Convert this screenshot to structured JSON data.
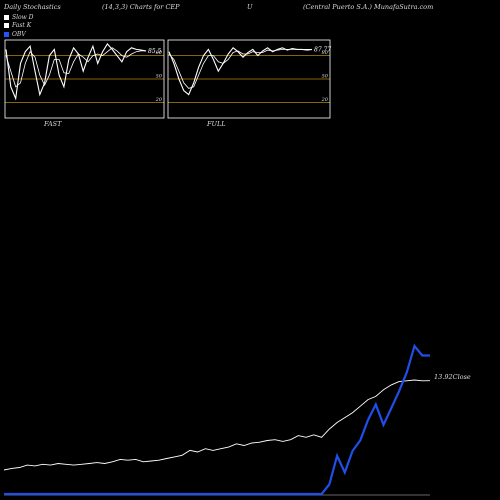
{
  "header": {
    "left": "Daily Stochastics",
    "params": "(14,3,3) Charts for CEP",
    "middle": "U",
    "right": "(Central Puerto  S.A.) MunafaSutra.com"
  },
  "legend": [
    {
      "label": "Slow  D",
      "color": "#ffffff"
    },
    {
      "label": "Fast K",
      "color": "#ffffff"
    },
    {
      "label": "OBV",
      "color": "#2255ff"
    }
  ],
  "colors": {
    "background": "#000000",
    "panel_border": "#ffffff",
    "level_line": "#b8860b",
    "stoch_line": "#ffffff",
    "obv": "#1f4fe8",
    "close": "#ffffff"
  },
  "chart_data": [
    {
      "type": "line",
      "panel": "FAST",
      "title": "FAST",
      "ylim": [
        0,
        100
      ],
      "levels": [
        20,
        50,
        80
      ],
      "last_value_label": "85.5",
      "series": [
        {
          "name": "Fast K",
          "values": [
            88,
            40,
            25,
            70,
            85,
            92,
            60,
            30,
            45,
            80,
            88,
            55,
            40,
            75,
            90,
            82,
            60,
            78,
            92,
            70,
            85,
            95,
            88,
            80,
            72,
            85,
            90,
            88,
            87,
            86
          ]
        },
        {
          "name": "Slow  D",
          "values": [
            80,
            60,
            40,
            45,
            70,
            85,
            78,
            55,
            42,
            55,
            75,
            75,
            58,
            57,
            72,
            82,
            78,
            72,
            80,
            82,
            80,
            85,
            90,
            86,
            80,
            78,
            82,
            85,
            86,
            86
          ]
        }
      ]
    },
    {
      "type": "line",
      "panel": "FULL",
      "title": "FULL",
      "ylim": [
        0,
        100
      ],
      "levels": [
        20,
        50,
        80
      ],
      "last_value_label": "87.77",
      "series": [
        {
          "name": "Fast K",
          "values": [
            85,
            70,
            50,
            35,
            30,
            45,
            65,
            80,
            88,
            75,
            60,
            70,
            82,
            90,
            85,
            78,
            84,
            88,
            80,
            86,
            90,
            85,
            88,
            90,
            87,
            89,
            88,
            88,
            87,
            88
          ]
        },
        {
          "name": "Slow  D",
          "values": [
            82,
            75,
            60,
            45,
            38,
            40,
            55,
            70,
            80,
            80,
            72,
            70,
            75,
            84,
            86,
            82,
            82,
            85,
            84,
            84,
            87,
            86,
            87,
            88,
            88,
            88,
            88,
            88,
            88,
            88
          ]
        }
      ]
    },
    {
      "type": "line",
      "panel": "price_obv",
      "close_label": "13.92Close",
      "series": [
        {
          "name": "Close",
          "values": [
            3.0,
            3.2,
            3.3,
            3.6,
            3.5,
            3.7,
            3.6,
            3.8,
            3.7,
            3.6,
            3.7,
            3.8,
            3.9,
            3.8,
            4.0,
            4.3,
            4.2,
            4.3,
            4.0,
            4.1,
            4.2,
            4.4,
            4.6,
            4.8,
            5.4,
            5.2,
            5.6,
            5.4,
            5.6,
            5.8,
            6.2,
            6.0,
            6.3,
            6.4,
            6.6,
            6.7,
            6.5,
            6.7,
            7.2,
            7.0,
            7.3,
            7.0,
            8.0,
            8.8,
            9.4,
            10.0,
            10.8,
            11.6,
            12.0,
            12.8,
            13.4,
            13.8,
            13.9,
            14.0,
            13.9,
            13.92
          ]
        },
        {
          "name": "OBV",
          "values": [
            0,
            0,
            0,
            0,
            0,
            0,
            0,
            0,
            0,
            0,
            0,
            0,
            0,
            0,
            0,
            0,
            0,
            0,
            0,
            0,
            0,
            0,
            0,
            0,
            0,
            0,
            0,
            0,
            0,
            0,
            0,
            0,
            0,
            0,
            0,
            0,
            0,
            0,
            0,
            0,
            0,
            0,
            0.8,
            3.2,
            1.8,
            3.6,
            4.5,
            6.2,
            7.5,
            5.8,
            7.2,
            8.6,
            10.2,
            12.4,
            11.6,
            11.6
          ]
        }
      ]
    }
  ]
}
